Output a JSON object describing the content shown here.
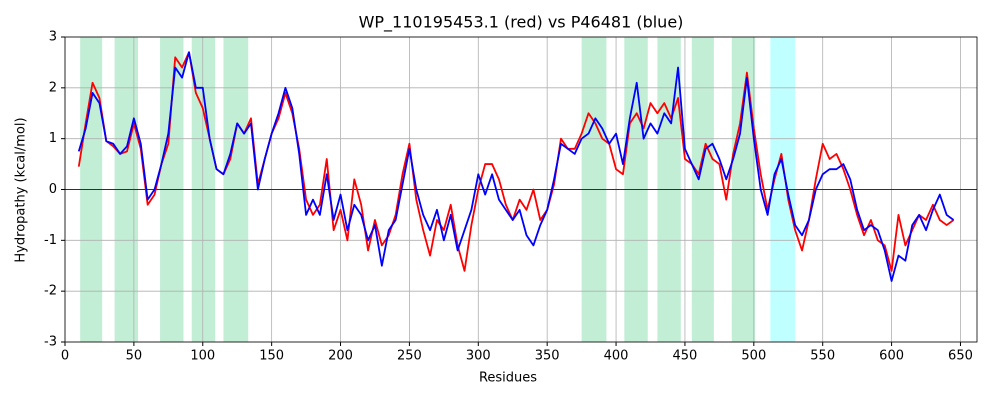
{
  "chart_data": {
    "type": "line",
    "title": "WP_110195453.1 (red) vs P46481 (blue)",
    "xlabel": "Residues",
    "ylabel": "Hydropathy (kcal/mol)",
    "x": [
      10,
      15,
      20,
      25,
      30,
      35,
      40,
      45,
      50,
      55,
      60,
      65,
      70,
      75,
      80,
      85,
      90,
      95,
      100,
      105,
      110,
      115,
      120,
      125,
      130,
      135,
      140,
      145,
      150,
      155,
      160,
      165,
      170,
      175,
      180,
      185,
      190,
      195,
      200,
      205,
      210,
      215,
      220,
      225,
      230,
      235,
      240,
      245,
      250,
      255,
      260,
      265,
      270,
      275,
      280,
      285,
      290,
      295,
      300,
      305,
      310,
      315,
      320,
      325,
      330,
      335,
      340,
      345,
      350,
      355,
      360,
      365,
      370,
      375,
      380,
      385,
      390,
      395,
      400,
      405,
      410,
      415,
      420,
      425,
      430,
      435,
      440,
      445,
      450,
      455,
      460,
      465,
      470,
      475,
      480,
      485,
      490,
      495,
      500,
      505,
      510,
      515,
      520,
      525,
      530,
      535,
      540,
      545,
      550,
      555,
      560,
      565,
      570,
      575,
      580,
      585,
      590,
      595,
      600,
      605,
      610,
      615,
      620,
      625,
      630,
      635,
      640,
      645
    ],
    "series": [
      {
        "name": "WP_110195453.1",
        "color": "#ff0000",
        "values": [
          0.45,
          1.3,
          2.1,
          1.8,
          0.95,
          0.85,
          0.7,
          0.75,
          1.3,
          0.8,
          -0.3,
          -0.1,
          0.5,
          0.9,
          2.6,
          2.4,
          2.7,
          1.9,
          1.6,
          1.0,
          0.4,
          0.3,
          0.6,
          1.3,
          1.1,
          1.4,
          0.1,
          0.6,
          1.1,
          1.4,
          1.9,
          1.5,
          0.8,
          -0.2,
          -0.5,
          -0.3,
          0.6,
          -0.8,
          -0.4,
          -1.0,
          0.2,
          -0.3,
          -1.2,
          -0.6,
          -1.1,
          -0.9,
          -0.5,
          0.3,
          0.9,
          -0.2,
          -0.8,
          -1.3,
          -0.6,
          -0.8,
          -0.3,
          -1.1,
          -1.6,
          -0.7,
          0.0,
          0.5,
          0.5,
          0.2,
          -0.3,
          -0.6,
          -0.2,
          -0.4,
          0.0,
          -0.6,
          -0.4,
          0.1,
          1.0,
          0.8,
          0.8,
          1.1,
          1.5,
          1.3,
          1.0,
          0.9,
          0.4,
          0.3,
          1.3,
          1.5,
          1.2,
          1.7,
          1.5,
          1.7,
          1.4,
          1.8,
          0.6,
          0.5,
          0.3,
          0.9,
          0.6,
          0.5,
          -0.2,
          0.7,
          1.3,
          2.3,
          1.2,
          0.3,
          -0.4,
          0.2,
          0.7,
          -0.2,
          -0.8,
          -1.2,
          -0.6,
          0.2,
          0.9,
          0.6,
          0.7,
          0.4,
          0.0,
          -0.5,
          -0.9,
          -0.6,
          -1.0,
          -1.1,
          -1.6,
          -0.5,
          -1.1,
          -0.8,
          -0.5,
          -0.6,
          -0.3,
          -0.6,
          -0.7,
          -0.6
        ]
      },
      {
        "name": "P46481",
        "color": "#0000ff",
        "values": [
          0.75,
          1.2,
          1.9,
          1.7,
          0.95,
          0.9,
          0.7,
          0.85,
          1.4,
          0.9,
          -0.2,
          0.0,
          0.5,
          1.1,
          2.4,
          2.2,
          2.7,
          2.0,
          2.0,
          1.0,
          0.4,
          0.3,
          0.7,
          1.3,
          1.1,
          1.3,
          0.0,
          0.6,
          1.1,
          1.5,
          2.0,
          1.6,
          0.7,
          -0.5,
          -0.2,
          -0.5,
          0.3,
          -0.6,
          -0.1,
          -0.8,
          -0.3,
          -0.5,
          -1.0,
          -0.7,
          -1.5,
          -0.8,
          -0.6,
          0.1,
          0.8,
          0.0,
          -0.5,
          -0.8,
          -0.4,
          -1.0,
          -0.5,
          -1.2,
          -0.8,
          -0.4,
          0.3,
          -0.1,
          0.3,
          -0.2,
          -0.4,
          -0.6,
          -0.4,
          -0.9,
          -1.1,
          -0.7,
          -0.4,
          0.2,
          0.9,
          0.8,
          0.7,
          1.0,
          1.1,
          1.4,
          1.2,
          0.9,
          1.1,
          0.5,
          1.4,
          2.1,
          1.0,
          1.3,
          1.1,
          1.5,
          1.3,
          2.4,
          0.8,
          0.5,
          0.2,
          0.8,
          0.9,
          0.6,
          0.2,
          0.6,
          1.1,
          2.2,
          1.0,
          0.0,
          -0.5,
          0.3,
          0.6,
          -0.1,
          -0.7,
          -0.9,
          -0.6,
          0.0,
          0.3,
          0.4,
          0.4,
          0.5,
          0.2,
          -0.4,
          -0.8,
          -0.7,
          -0.8,
          -1.2,
          -1.8,
          -1.3,
          -1.4,
          -0.7,
          -0.5,
          -0.8,
          -0.4,
          -0.1,
          -0.5,
          -0.6
        ]
      }
    ],
    "spans": [
      {
        "start": 11,
        "end": 27,
        "color": "#c2eed6"
      },
      {
        "start": 36,
        "end": 53,
        "color": "#c2eed6"
      },
      {
        "start": 69,
        "end": 86,
        "color": "#c2eed6"
      },
      {
        "start": 92,
        "end": 109,
        "color": "#c2eed6"
      },
      {
        "start": 115,
        "end": 133,
        "color": "#c2eed6"
      },
      {
        "start": 375,
        "end": 393,
        "color": "#c2eed6"
      },
      {
        "start": 406,
        "end": 423,
        "color": "#c2eed6"
      },
      {
        "start": 430,
        "end": 447,
        "color": "#c2eed6"
      },
      {
        "start": 455,
        "end": 471,
        "color": "#c2eed6"
      },
      {
        "start": 484,
        "end": 501,
        "color": "#c2eed6"
      },
      {
        "start": 512,
        "end": 530,
        "color": "#c0ffff"
      }
    ],
    "hline": 0,
    "xlim": [
      0,
      662
    ],
    "ylim": [
      -3,
      3
    ],
    "xticks": [
      0,
      50,
      100,
      150,
      200,
      250,
      300,
      350,
      400,
      450,
      500,
      550,
      600,
      650
    ],
    "yticks": [
      -3,
      -2,
      -1,
      0,
      1,
      2,
      3
    ],
    "grid": true
  }
}
